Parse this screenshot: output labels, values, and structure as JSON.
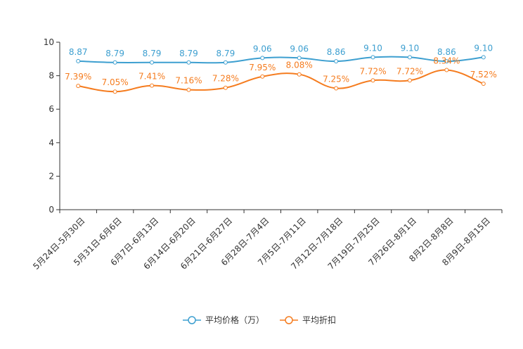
{
  "chart_data": {
    "type": "line",
    "title": "",
    "xlabel": "",
    "ylabel": "",
    "ylim": [
      0,
      10
    ],
    "yticks": [
      0,
      2,
      4,
      6,
      8,
      10
    ],
    "yticks_text": [
      "0",
      "2",
      "4",
      "6",
      "8",
      "10"
    ],
    "grid": false,
    "legend_position": "bottom-center",
    "categories": [
      "5月24日-5月30日",
      "5月31日-6月6日",
      "6月7日-6月13日",
      "6月14日-6月20日",
      "6月21日-6月27日",
      "6月28日-7月4日",
      "7月5日-7月11日",
      "7月12日-7月18日",
      "7月19日-7月25日",
      "7月26日-8月1日",
      "8月2日-8月8日",
      "8月9日-8月15日"
    ],
    "series": [
      {
        "name": "平均价格（万）",
        "color": "#3d9fd0",
        "values": [
          8.87,
          8.79,
          8.79,
          8.79,
          8.79,
          9.06,
          9.06,
          8.86,
          9.1,
          9.1,
          8.86,
          9.1
        ],
        "labels": [
          "8.87",
          "8.79",
          "8.79",
          "8.79",
          "8.79",
          "9.06",
          "9.06",
          "8.86",
          "9.10",
          "9.10",
          "8.86",
          "9.10"
        ]
      },
      {
        "name": "平均折扣",
        "color": "#f57c1f",
        "values": [
          7.39,
          7.05,
          7.41,
          7.16,
          7.28,
          7.95,
          8.08,
          7.25,
          7.72,
          7.72,
          8.34,
          7.52
        ],
        "labels": [
          "7.39%",
          "7.05%",
          "7.41%",
          "7.16%",
          "7.28%",
          "7.95%",
          "8.08%",
          "7.25%",
          "7.72%",
          "7.72%",
          "8.34%",
          "7.52%"
        ]
      }
    ]
  }
}
